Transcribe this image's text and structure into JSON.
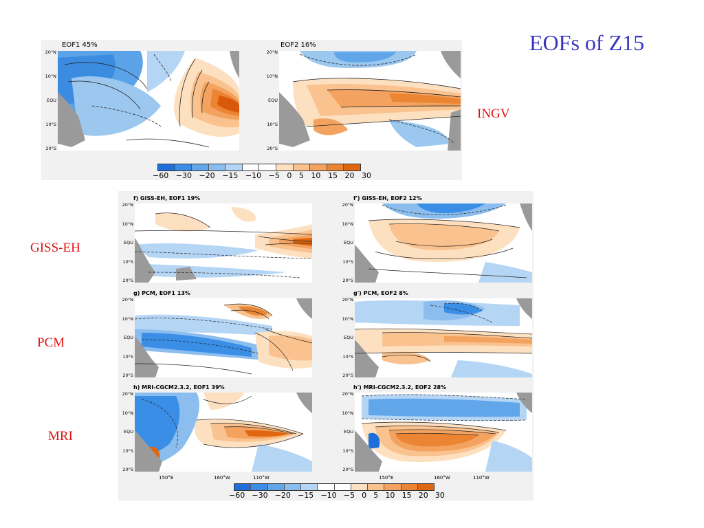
{
  "slide_title": "EOFs of Z15",
  "models": {
    "ingv": "INGV",
    "giss": "GISS-EH",
    "pcm": "PCM",
    "mri": "MRI"
  },
  "top_panels": {
    "eof1_title": "EOF1  45%",
    "eof2_title": "EOF2  16%"
  },
  "bottom_panels": {
    "f_title": "f) GISS-EH, EOF1 19%",
    "f2_title": "f') GISS-EH, EOF2 12%",
    "g_title": "g) PCM, EOF1 13%",
    "g2_title": "g') PCM, EOF2  8%",
    "h_title": "h) MRI-CGCM2.3.2, EOF1 39%",
    "h2_title": "h') MRI-CGCM2.3.2, EOF2 28%"
  },
  "lat_labels": [
    "20°N",
    "10°N",
    "EQU",
    "10°S",
    "20°S"
  ],
  "lon_labels": [
    "150°E",
    "160°W",
    "110°W"
  ],
  "colorbar": {
    "labels": [
      "−60",
      "−30",
      "−20",
      "−15",
      "−10",
      "−5",
      "0",
      "5",
      "10",
      "15",
      "20",
      "30"
    ],
    "colors": [
      "#1e6fd9",
      "#3a8ee6",
      "#62a6ea",
      "#8bbdef",
      "#b5d5f5",
      "#ffffff",
      "#ffffff",
      "#fde0c0",
      "#f9c28f",
      "#f3a35f",
      "#eb8433",
      "#e0660f"
    ]
  }
}
